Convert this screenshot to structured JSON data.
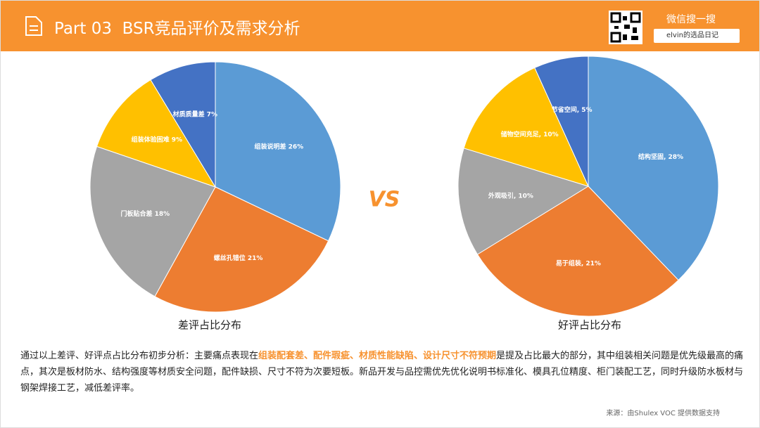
{
  "header": {
    "title": "Part 03  BSR竞品评价及需求分析",
    "wechat": "微信搜一搜",
    "search": "elvin的选品日记"
  },
  "vs": "VS",
  "chart_data": [
    {
      "type": "pie",
      "title": "差评占比分布",
      "values": [
        26,
        21,
        18,
        9,
        7
      ],
      "value_labels": [
        "组装说明差 26%",
        "螺丝孔错位 21%",
        "门板贴合差 18%",
        "组装体验困难 9%",
        "材质质量差 7%"
      ],
      "colors": [
        "#5b9bd5",
        "#ed7d31",
        "#a5a5a5",
        "#ffc000",
        "#4472c4"
      ]
    },
    {
      "type": "pie",
      "title": "好评占比分布",
      "values": [
        28,
        21,
        10,
        10,
        5
      ],
      "value_labels": [
        "结构坚固, 28%",
        "易于组装, 21%",
        "外观吸引, 10%",
        "储物空间充足, 10%",
        "节省空间, 5%"
      ],
      "colors": [
        "#5b9bd5",
        "#ed7d31",
        "#a5a5a5",
        "#ffc000",
        "#4472c4"
      ]
    }
  ],
  "summary": {
    "before": "通过以上差评、好评点占比分布初步分析：主要痛点表现在",
    "highlight": "组装配套差、配件瑕疵、材质性能缺陷、设计尺寸不符预期",
    "after": "是提及占比最大的部分，其中组装相关问题是优先级最高的痛点，其次是板材防水、结构强度等材质安全问题，配件缺损、尺寸不符为次要短板。新品开发与品控需优先优化说明书标准化、模具孔位精度、柜门装配工艺，同时升级防水板材与钢架焊接工艺，减低差评率。"
  },
  "source": "来源：由Shulex VOC 提供数据支持"
}
